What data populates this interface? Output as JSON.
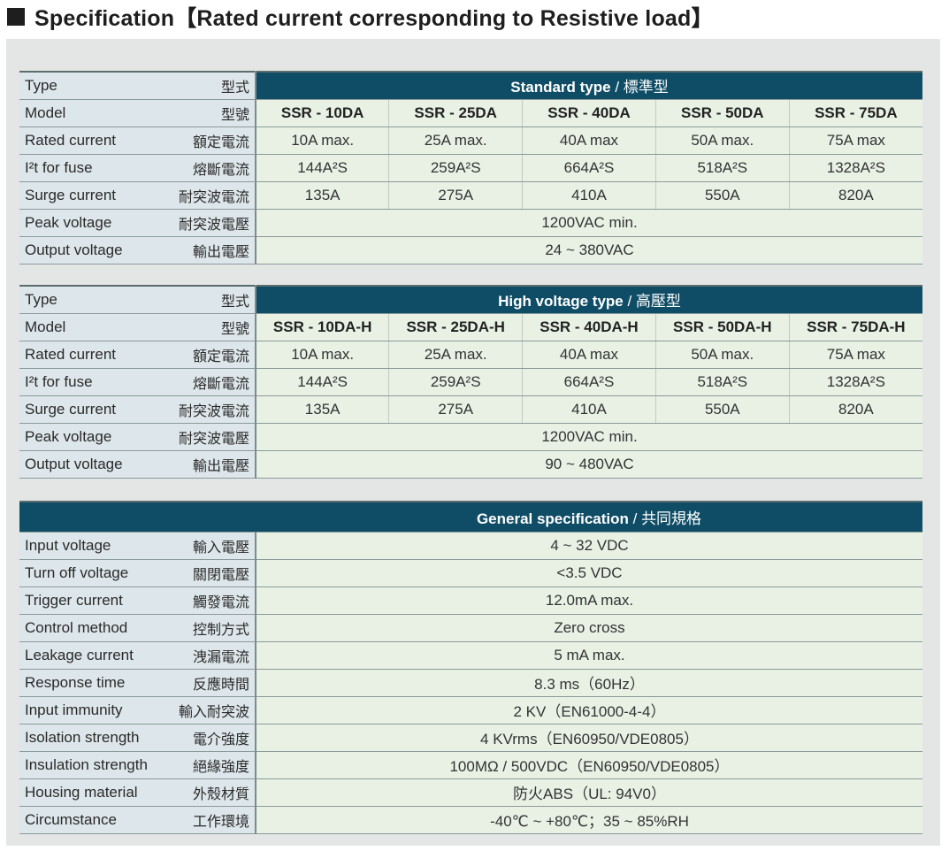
{
  "title": "Specification【Rated current corresponding to Resistive load】",
  "standard": {
    "type_label_en": "Type",
    "type_label_zh": "型式",
    "header_en": "Standard type",
    "header_zh": "標準型",
    "rows": [
      {
        "en": "Model",
        "zh": "型號",
        "values": [
          "SSR - 10DA",
          "SSR - 25DA",
          "SSR - 40DA",
          "SSR - 50DA",
          "SSR - 75DA"
        ]
      },
      {
        "en": "Rated current",
        "zh": "額定電流",
        "values": [
          "10A max.",
          "25A max.",
          "40A max",
          "50A max.",
          "75A max"
        ]
      },
      {
        "en": "I²t for fuse",
        "zh": "熔斷電流",
        "values": [
          "144A²S",
          "259A²S",
          "664A²S",
          "518A²S",
          "1328A²S"
        ]
      },
      {
        "en": "Surge current",
        "zh": "耐突波電流",
        "values": [
          "135A",
          "275A",
          "410A",
          "550A",
          "820A"
        ]
      },
      {
        "en": "Peak voltage",
        "zh": "耐突波電壓",
        "value": "1200VAC min."
      },
      {
        "en": "Output voltage",
        "zh": "輸出電壓",
        "value": "24 ~ 380VAC"
      }
    ]
  },
  "high": {
    "type_label_en": "Type",
    "type_label_zh": "型式",
    "header_en": "High voltage type",
    "header_zh": "高壓型",
    "rows": [
      {
        "en": "Model",
        "zh": "型號",
        "values": [
          "SSR - 10DA-H",
          "SSR - 25DA-H",
          "SSR - 40DA-H",
          "SSR - 50DA-H",
          "SSR - 75DA-H"
        ]
      },
      {
        "en": "Rated current",
        "zh": "額定電流",
        "values": [
          "10A max.",
          "25A max.",
          "40A max",
          "50A max.",
          "75A max"
        ]
      },
      {
        "en": "I²t for fuse",
        "zh": "熔斷電流",
        "values": [
          "144A²S",
          "259A²S",
          "664A²S",
          "518A²S",
          "1328A²S"
        ]
      },
      {
        "en": "Surge current",
        "zh": "耐突波電流",
        "values": [
          "135A",
          "275A",
          "410A",
          "550A",
          "820A"
        ]
      },
      {
        "en": "Peak voltage",
        "zh": "耐突波電壓",
        "value": "1200VAC min."
      },
      {
        "en": "Output voltage",
        "zh": "輸出電壓",
        "value": "90 ~ 480VAC"
      }
    ]
  },
  "general": {
    "header_en": "General specification",
    "header_zh": "共同規格",
    "rows": [
      {
        "en": "Input voltage",
        "zh": "輸入電壓",
        "value": "4 ~ 32 VDC"
      },
      {
        "en": "Turn off voltage",
        "zh": "關閉電壓",
        "value": "<3.5 VDC"
      },
      {
        "en": "Trigger current",
        "zh": "觸發電流",
        "value": "12.0mA max."
      },
      {
        "en": "Control method",
        "zh": "控制方式",
        "value": "Zero cross"
      },
      {
        "en": "Leakage current",
        "zh": "洩漏電流",
        "value": "5 mA max."
      },
      {
        "en": "Response time",
        "zh": "反應時間",
        "value": "8.3 ms（60Hz）"
      },
      {
        "en": "Input immunity",
        "zh": "輸入耐突波",
        "value": "2 KV（EN61000-4-4）"
      },
      {
        "en": "Isolation strength",
        "zh": "電介強度",
        "value": "4 KVrms（EN60950/VDE0805）"
      },
      {
        "en": "Insulation strength",
        "zh": "絕緣強度",
        "value": "100MΩ / 500VDC（EN60950/VDE0805）"
      },
      {
        "en": "Housing material",
        "zh": "外殼材質",
        "value": "防火ABS（UL: 94V0）"
      },
      {
        "en": "Circumstance",
        "zh": "工作環境",
        "value": "-40℃ ~ +80℃；35 ~ 85%RH"
      }
    ]
  }
}
